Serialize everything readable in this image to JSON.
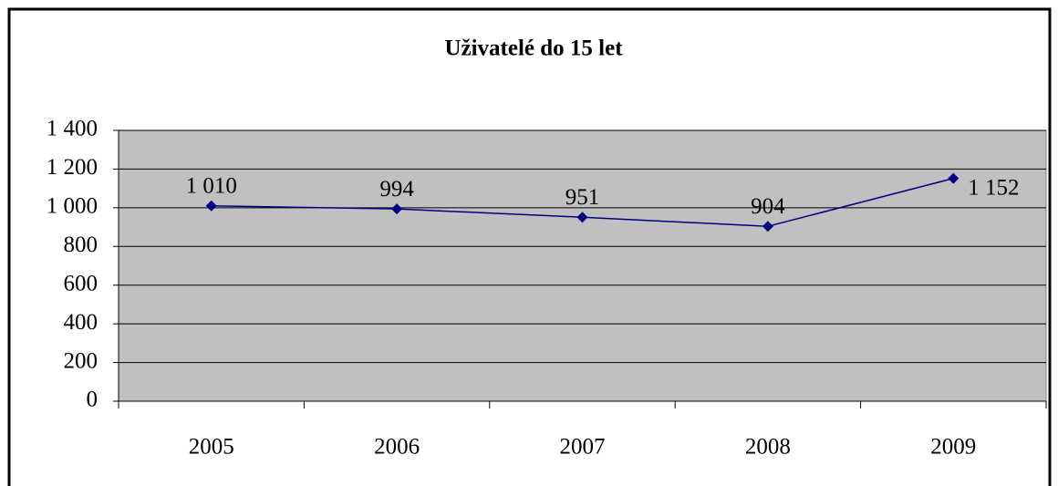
{
  "chart_data": {
    "type": "line",
    "title": "Uživatelé do 15 let",
    "categories": [
      "2005",
      "2006",
      "2007",
      "2008",
      "2009"
    ],
    "series": [
      {
        "name": null,
        "color": "#000080",
        "values": [
          1010,
          994,
          951,
          904,
          1152
        ],
        "value_labels": [
          "1 010",
          "994",
          "951",
          "904",
          "1 152"
        ]
      }
    ],
    "ylim": [
      0,
      1400
    ],
    "yticks": [
      0,
      200,
      400,
      600,
      800,
      {
        "value": 1000,
        "label": "1 000"
      },
      {
        "value": 1200,
        "label": "1 200"
      },
      {
        "value": 1400,
        "label": "1 400"
      }
    ],
    "grid": true,
    "plot_background": "#c0c0c0"
  }
}
